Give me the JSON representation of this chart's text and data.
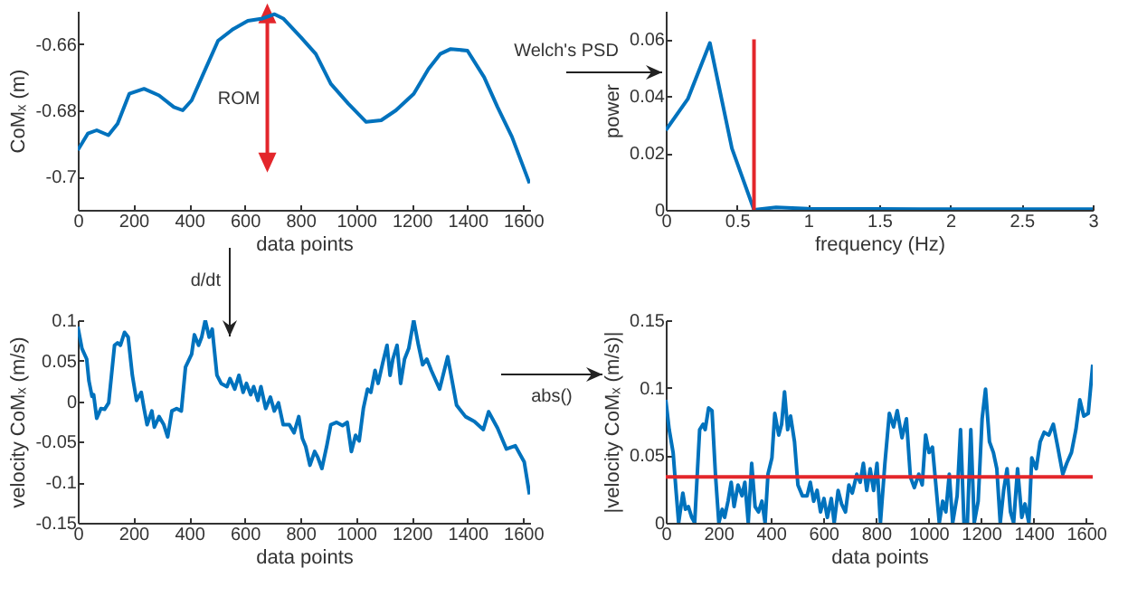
{
  "chart_data": [
    {
      "type": "line",
      "xlabel": "data points",
      "ylabel": "CoMₓ (m)",
      "xlim": [
        0,
        1625
      ],
      "xticks": [
        0,
        200,
        400,
        600,
        800,
        1000,
        1200,
        1400,
        1600
      ],
      "ylim": [
        -0.71,
        -0.65
      ],
      "yticks": [
        -0.7,
        -0.68,
        -0.66
      ],
      "annotations": [
        "ROM"
      ],
      "series": [
        {
          "color": "#0072bd",
          "x": [
            0,
            36,
            68,
            110,
            143,
            185,
            238,
            292,
            345,
            377,
            409,
            451,
            504,
            558,
            611,
            664,
            707,
            738,
            802,
            855,
            909,
            972,
            1036,
            1090,
            1143,
            1207,
            1260,
            1302,
            1340,
            1400,
            1460,
            1508,
            1560,
            1623
          ],
          "values": [
            -0.692,
            -0.687,
            -0.686,
            -0.6875,
            -0.684,
            -0.675,
            -0.6735,
            -0.6755,
            -0.679,
            -0.68,
            -0.677,
            -0.669,
            -0.659,
            -0.6555,
            -0.653,
            -0.6523,
            -0.651,
            -0.6523,
            -0.658,
            -0.663,
            -0.672,
            -0.678,
            -0.6835,
            -0.683,
            -0.68,
            -0.675,
            -0.6675,
            -0.663,
            -0.6615,
            -0.662,
            -0.67,
            -0.679,
            -0.688,
            -0.702
          ]
        }
      ]
    },
    {
      "type": "line",
      "xlabel": "frequency (Hz)",
      "ylabel": "power",
      "xlim": [
        0,
        3
      ],
      "xticks": [
        0,
        0.5,
        1,
        1.5,
        2,
        2.5,
        3
      ],
      "ylim": [
        0,
        0.07
      ],
      "yticks": [
        0,
        0.02,
        0.04,
        0.06
      ],
      "annotations": [
        "Welch's PSD"
      ],
      "series": [
        {
          "color": "#0072bd",
          "x": [
            0,
            0.155,
            0.31,
            0.465,
            0.62,
            0.775,
            1.0,
            1.5,
            2.0,
            2.5,
            3.0
          ],
          "values": [
            0.028,
            0.039,
            0.0587,
            0.0216,
            0,
            0.0009,
            0.0004,
            0.0003,
            0.0002,
            0.0002,
            0.0002
          ]
        },
        {
          "color": "#e3262b",
          "x": [
            0.62,
            0.62
          ],
          "values": [
            0,
            0.06
          ]
        }
      ]
    },
    {
      "type": "line",
      "xlabel": "data points",
      "ylabel": "velocity CoMₓ (m/s)",
      "xlim": [
        0,
        1625
      ],
      "xticks": [
        0,
        200,
        400,
        600,
        800,
        1000,
        1200,
        1400,
        1600
      ],
      "ylim": [
        -0.15,
        0.1
      ],
      "yticks": [
        -0.15,
        -0.1,
        -0.05,
        0,
        0.05,
        0.1
      ],
      "annotations": [
        "d/dt"
      ],
      "series": [
        {
          "color": "#0072bd",
          "x": [
            0,
            15,
            32,
            40,
            51,
            57,
            68,
            83,
            96,
            111,
            132,
            143,
            153,
            168,
            181,
            196,
            211,
            228,
            238,
            249,
            266,
            275,
            292,
            309,
            323,
            338,
            355,
            372,
            387,
            409,
            419,
            434,
            445,
            458,
            472,
            483,
            500,
            515,
            536,
            547,
            564,
            579,
            594,
            606,
            621,
            632,
            647,
            658,
            675,
            692,
            706,
            721,
            738,
            760,
            777,
            794,
            807,
            819,
            834,
            851,
            862,
            877,
            894,
            909,
            930,
            951,
            968,
            983,
            998,
            1011,
            1026,
            1041,
            1053,
            1068,
            1079,
            1096,
            1111,
            1122,
            1132,
            1147,
            1160,
            1174,
            1189,
            1207,
            1224,
            1239,
            1254,
            1270,
            1300,
            1329,
            1361,
            1393,
            1425,
            1457,
            1476,
            1508,
            1540,
            1572,
            1604,
            1623
          ],
          "values": [
            0.092,
            0.065,
            0.052,
            0.025,
            0.006,
            0.008,
            -0.021,
            -0.009,
            -0.01,
            -0.002,
            0.069,
            0.072,
            0.069,
            0.085,
            0.079,
            0.032,
            0.001,
            0.011,
            -0.009,
            -0.029,
            -0.012,
            -0.032,
            -0.019,
            -0.029,
            -0.044,
            -0.012,
            -0.009,
            -0.012,
            0.042,
            0.058,
            0.082,
            0.069,
            0.079,
            0.1,
            0.079,
            0.089,
            0.032,
            0.022,
            0.018,
            0.028,
            0.015,
            0.032,
            0.011,
            0.022,
            0.008,
            0.018,
            0.001,
            0.018,
            -0.009,
            0.005,
            -0.012,
            -0.002,
            -0.029,
            -0.029,
            -0.039,
            -0.019,
            -0.046,
            -0.056,
            -0.079,
            -0.062,
            -0.069,
            -0.083,
            -0.056,
            -0.029,
            -0.026,
            -0.03,
            -0.026,
            -0.062,
            -0.042,
            -0.049,
            -0.009,
            0.015,
            0.011,
            0.038,
            0.022,
            0.048,
            0.069,
            0.032,
            0.052,
            0.069,
            0.022,
            0.052,
            0.065,
            0.1,
            0.069,
            0.045,
            0.052,
            0.038,
            0.015,
            0.055,
            -0.005,
            -0.019,
            -0.025,
            -0.035,
            -0.013,
            -0.033,
            -0.059,
            -0.055,
            -0.075,
            -0.115
          ]
        }
      ]
    },
    {
      "type": "line",
      "xlabel": "data points",
      "ylabel": "|velocity CoMₓ (m/s)|",
      "xlim": [
        0,
        1625
      ],
      "xticks": [
        0,
        200,
        400,
        600,
        800,
        1000,
        1200,
        1400,
        1600
      ],
      "ylim": [
        0,
        0.15
      ],
      "yticks": [
        0,
        0.05,
        0.1,
        0.15
      ],
      "annotations": [
        "abs()"
      ],
      "ref_lines": [
        {
          "axis": "y",
          "value": 0.034,
          "color": "#e3262b"
        }
      ],
      "series": [
        {
          "color": "#0072bd",
          "x": [
            0,
            13,
            28,
            39,
            49,
            65,
            75,
            86,
            99,
            110,
            129,
            142,
            150,
            163,
            176,
            189,
            202,
            215,
            224,
            237,
            249,
            260,
            275,
            290,
            301,
            314,
            327,
            340,
            353,
            366,
            378,
            389,
            404,
            415,
            430,
            441,
            452,
            464,
            475,
            490,
            503,
            520,
            538,
            550,
            563,
            576,
            589,
            602,
            615,
            630,
            641,
            656,
            669,
            684,
            697,
            710,
            727,
            740,
            752,
            765,
            778,
            791,
            804,
            817,
            834,
            851,
            867,
            881,
            899,
            916,
            931,
            946,
            963,
            976,
            989,
            1002,
            1015,
            1028,
            1041,
            1054,
            1066,
            1079,
            1092,
            1109,
            1122,
            1135,
            1148,
            1161,
            1174,
            1189,
            1204,
            1217,
            1232,
            1247,
            1260,
            1273,
            1286,
            1299,
            1312,
            1324,
            1339,
            1355,
            1367,
            1382,
            1393,
            1410,
            1425,
            1440,
            1458,
            1475,
            1492,
            1511,
            1526,
            1544,
            1561,
            1576,
            1591,
            1608,
            1625
          ],
          "values": [
            0.091,
            0.069,
            0.052,
            0.024,
            0,
            0.022,
            0.01,
            0.012,
            0.004,
            0,
            0.069,
            0.073,
            0.069,
            0.085,
            0.083,
            0.036,
            0,
            0.01,
            0.004,
            0.016,
            0.03,
            0.012,
            0.028,
            0.02,
            0.03,
            0,
            0.044,
            0.012,
            0.008,
            0.016,
            0,
            0.036,
            0.048,
            0.081,
            0.065,
            0.073,
            0.097,
            0.069,
            0.079,
            0.06,
            0.028,
            0.02,
            0.02,
            0.03,
            0.016,
            0.024,
            0.008,
            0.018,
            0.004,
            0.018,
            0,
            0.024,
            0.014,
            0.008,
            0.028,
            0.022,
            0.036,
            0.03,
            0.044,
            0.024,
            0.04,
            0.024,
            0.044,
            0,
            0.044,
            0.081,
            0.071,
            0.083,
            0.063,
            0.077,
            0.034,
            0.026,
            0.036,
            0.028,
            0.065,
            0.052,
            0.056,
            0.028,
            0,
            0.016,
            0.008,
            0.036,
            0,
            0.02,
            0.069,
            0,
            0,
            0.069,
            0,
            0.016,
            0.077,
            0.099,
            0.06,
            0.052,
            0.04,
            0,
            0.024,
            0.04,
            0.008,
            0,
            0.04,
            0.004,
            0.014,
            0,
            0.048,
            0.04,
            0.06,
            0.067,
            0.065,
            0.073,
            0.056,
            0.036,
            0.044,
            0.052,
            0.069,
            0.091,
            0.079,
            0.081,
            0.117
          ]
        }
      ]
    }
  ]
}
